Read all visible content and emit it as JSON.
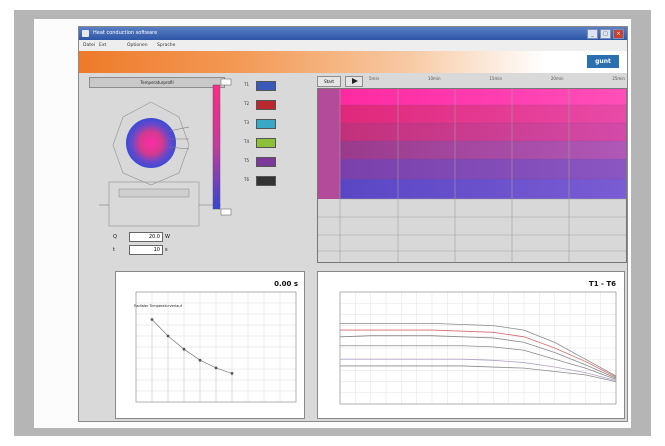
{
  "window": {
    "title": "Heat conduction software",
    "menu": [
      "Datei",
      "Ext",
      "Optionen",
      "Sprache"
    ],
    "logo": "gunt"
  },
  "left_panel": {
    "profile_button": "Temperaturprofil",
    "input1_label": "Q",
    "input1_value": "20.0",
    "input1_unit": "W",
    "input2_label": "t",
    "input2_value": "10",
    "input2_unit": "s"
  },
  "legend_chips": [
    {
      "label": "T1",
      "color": "#3a59b8"
    },
    {
      "label": "T2",
      "color": "#b8282c"
    },
    {
      "label": "T3",
      "color": "#37a8c8"
    },
    {
      "label": "T4",
      "color": "#8cbf3a"
    },
    {
      "label": "T5",
      "color": "#7a3a9a"
    },
    {
      "label": "T6",
      "color": "#333333"
    }
  ],
  "colorbar": {
    "top_label": "",
    "bottom_label": ""
  },
  "toolbar": {
    "start_label": "Start",
    "play_icon": "play-icon",
    "ticks": [
      "0",
      "5min",
      "10min",
      "15min",
      "20min",
      "25min"
    ]
  },
  "plot_left": {
    "time_readout": "0.00 s",
    "legend": "Radialer Temperaturverlauf",
    "series": [
      {
        "x": 1,
        "y": 75
      },
      {
        "x": 2,
        "y": 60
      },
      {
        "x": 3,
        "y": 48
      },
      {
        "x": 4,
        "y": 38
      },
      {
        "x": 5,
        "y": 31
      },
      {
        "x": 6,
        "y": 26
      }
    ],
    "xlim": [
      0,
      10
    ],
    "ylim": [
      0,
      100
    ]
  },
  "plot_right": {
    "title": "T1 - T6",
    "series": [
      {
        "name": "T1",
        "color": "#8a8a8a",
        "values": [
          72,
          72,
          72,
          72,
          71,
          70,
          66,
          55,
          40,
          25
        ]
      },
      {
        "name": "T2",
        "color": "#d66a6a",
        "values": [
          66,
          66,
          66,
          66,
          65,
          64,
          60,
          50,
          38,
          24
        ]
      },
      {
        "name": "T3",
        "color": "#8a8a8a",
        "values": [
          60,
          61,
          61,
          61,
          60,
          59,
          55,
          46,
          35,
          23
        ]
      },
      {
        "name": "T4",
        "color": "#8a8a8a",
        "values": [
          52,
          52,
          52,
          52,
          52,
          51,
          48,
          40,
          32,
          22
        ]
      },
      {
        "name": "T5",
        "color": "#b0a1c8",
        "values": [
          40,
          40,
          40,
          40,
          40,
          39,
          37,
          33,
          28,
          21
        ]
      },
      {
        "name": "T6",
        "color": "#8a8a8a",
        "values": [
          34,
          34,
          34,
          34,
          34,
          33,
          32,
          29,
          26,
          20
        ]
      }
    ],
    "ylim": [
      0,
      100
    ]
  }
}
